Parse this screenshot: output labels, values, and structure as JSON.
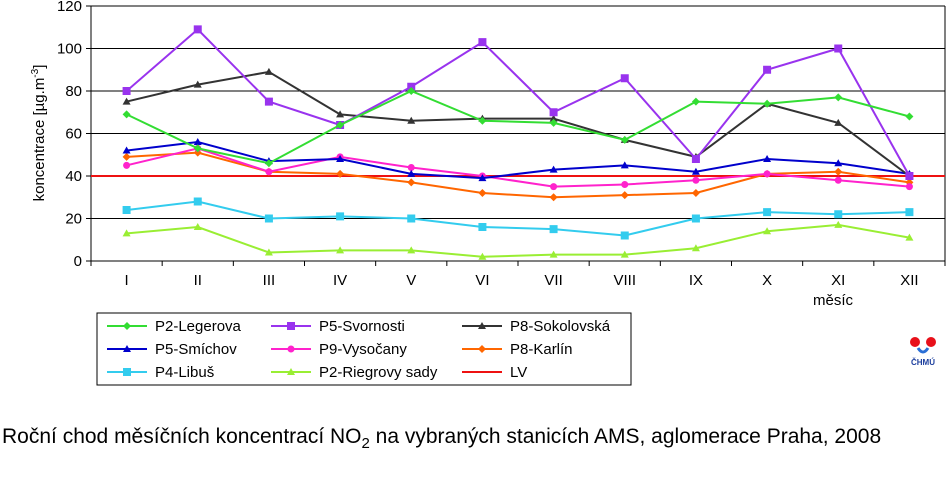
{
  "caption": {
    "pre": "Roční chod měsíčních koncentrací NO",
    "sub": "2",
    "post": " na vybraných stanicích AMS, aglomerace Praha, 2008"
  },
  "logo": {
    "text": "ČHMÚ",
    "icon": "chmu-logo"
  },
  "chart_data": {
    "type": "line",
    "categories": [
      "I",
      "II",
      "III",
      "IV",
      "V",
      "VI",
      "VII",
      "VIII",
      "IX",
      "X",
      "XI",
      "XII"
    ],
    "xlabel": "měsíc",
    "ylabel": {
      "main": "koncentrace [µg.m",
      "sup": "-3",
      "end": "]"
    },
    "ylim": [
      0,
      120
    ],
    "yticks": [
      0,
      20,
      40,
      60,
      80,
      100,
      120
    ],
    "grid": true,
    "legend_position": "bottom",
    "series": [
      {
        "name": "P2-Legerova",
        "color": "#33dd33",
        "marker": "diamond",
        "values": [
          69,
          53,
          46,
          64,
          80,
          66,
          65,
          57,
          75,
          74,
          77,
          68
        ]
      },
      {
        "name": "P5-Svornosti",
        "color": "#9933ee",
        "marker": "square",
        "values": [
          80,
          109,
          75,
          64,
          82,
          103,
          70,
          86,
          48,
          90,
          100,
          40
        ]
      },
      {
        "name": "P8-Sokolovská",
        "color": "#333333",
        "marker": "triangle",
        "values": [
          75,
          83,
          89,
          69,
          66,
          67,
          67,
          57,
          49,
          74,
          65,
          40
        ]
      },
      {
        "name": "P5-Smíchov",
        "color": "#0000cc",
        "marker": "triangle",
        "values": [
          52,
          56,
          47,
          48,
          41,
          39,
          43,
          45,
          42,
          48,
          46,
          41
        ]
      },
      {
        "name": "P9-Vysočany",
        "color": "#ff22cc",
        "marker": "circle",
        "values": [
          45,
          53,
          42,
          49,
          44,
          40,
          35,
          36,
          38,
          41,
          38,
          35
        ]
      },
      {
        "name": "P8-Karlín",
        "color": "#ff6600",
        "marker": "diamond",
        "values": [
          49,
          51,
          42,
          41,
          37,
          32,
          30,
          31,
          32,
          41,
          42,
          37
        ]
      },
      {
        "name": "P4-Libuš",
        "color": "#33ccee",
        "marker": "square",
        "values": [
          24,
          28,
          20,
          21,
          20,
          16,
          15,
          12,
          20,
          23,
          22,
          23
        ]
      },
      {
        "name": "P2-Riegrovy sady",
        "color": "#99ee33",
        "marker": "triangle",
        "values": [
          13,
          16,
          4,
          5,
          5,
          2,
          3,
          3,
          6,
          14,
          17,
          11
        ]
      },
      {
        "name": "LV",
        "color": "#ee1111",
        "marker": "none",
        "values": [
          40,
          40,
          40,
          40,
          40,
          40,
          40,
          40,
          40,
          40,
          40,
          40
        ]
      }
    ]
  }
}
